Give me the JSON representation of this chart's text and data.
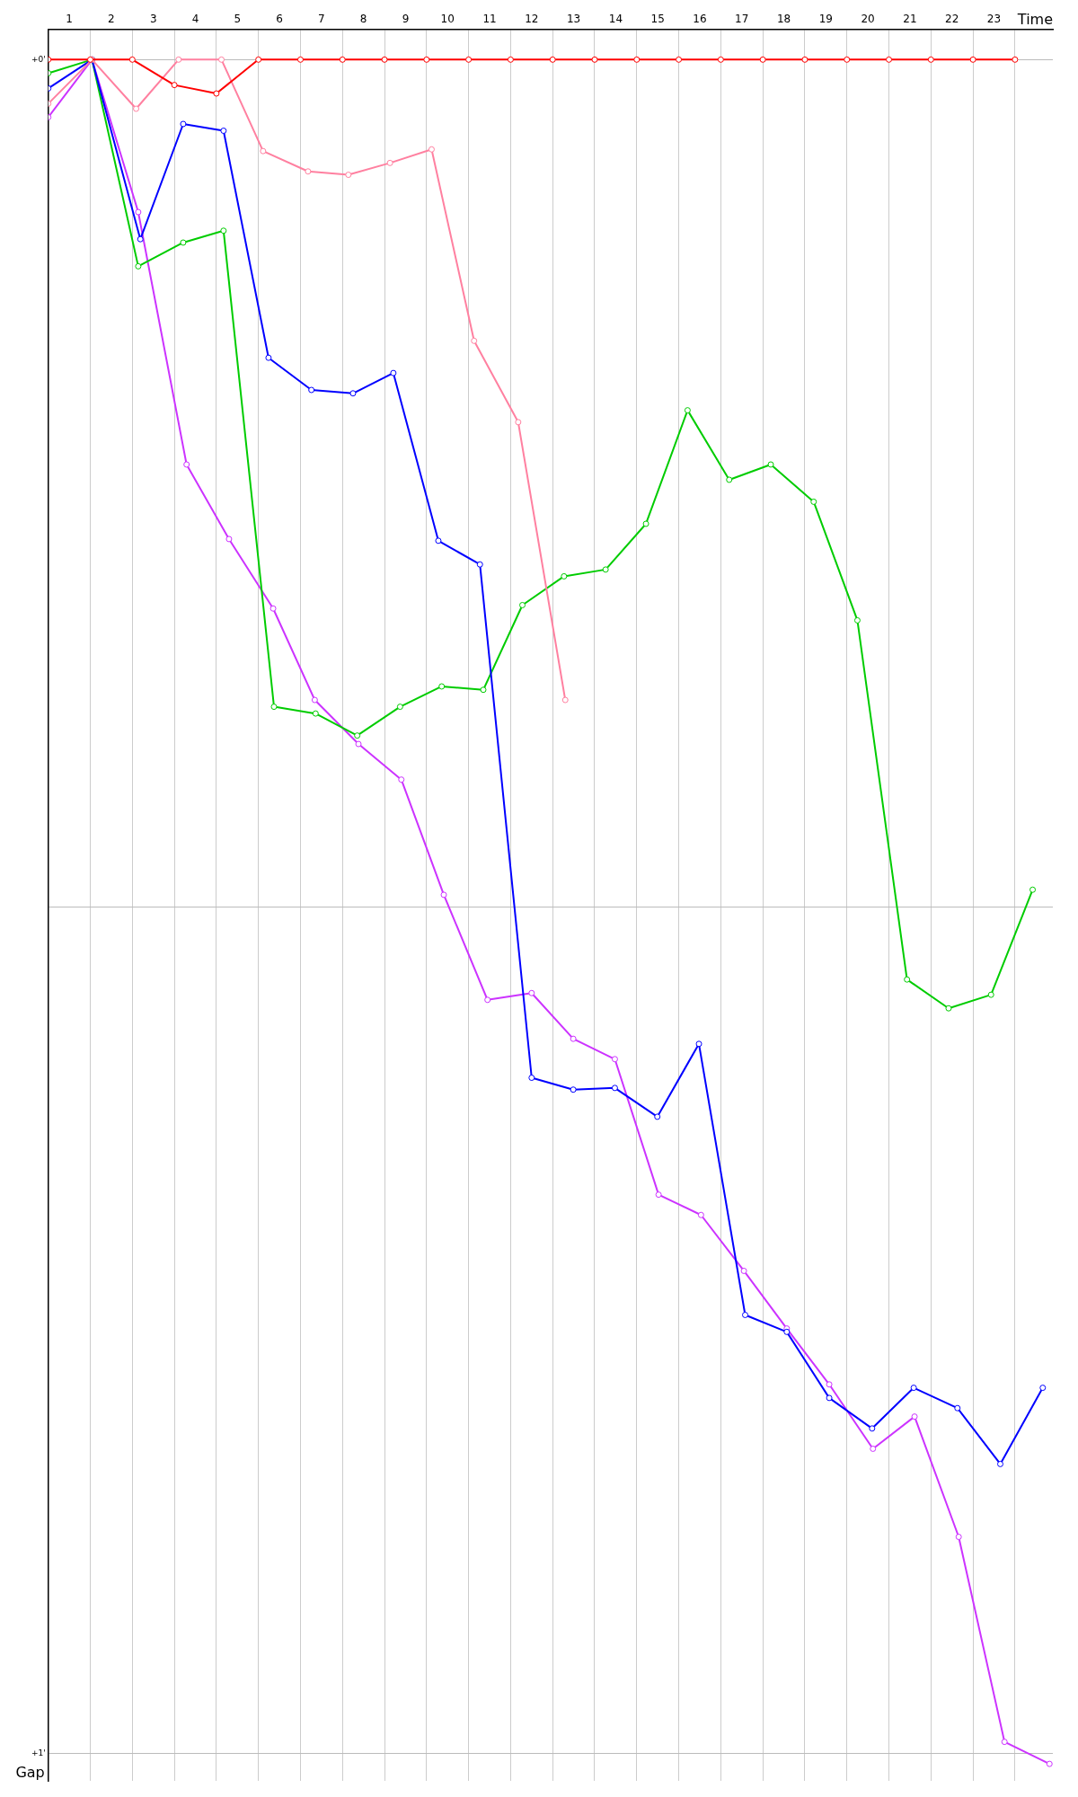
{
  "chart_data": {
    "type": "line",
    "xlabel": "Time",
    "ylabel": "Gap",
    "xlim": [
      0,
      23.9
    ],
    "ylim": [
      1.016,
      -0.018
    ],
    "xticks": [
      {
        "value": 0.5,
        "label": "1"
      },
      {
        "value": 1,
        "label": null
      },
      {
        "value": 1.5,
        "label": "2"
      },
      {
        "value": 2,
        "label": null
      },
      {
        "value": 2.5,
        "label": "3"
      },
      {
        "value": 3,
        "label": null
      },
      {
        "value": 3.5,
        "label": "4"
      },
      {
        "value": 4,
        "label": null
      },
      {
        "value": 4.5,
        "label": "5"
      },
      {
        "value": 5,
        "label": null
      },
      {
        "value": 5.5,
        "label": "6"
      },
      {
        "value": 6,
        "label": null
      },
      {
        "value": 6.5,
        "label": "7"
      },
      {
        "value": 7,
        "label": null
      },
      {
        "value": 7.5,
        "label": "8"
      },
      {
        "value": 8,
        "label": null
      },
      {
        "value": 8.5,
        "label": "9"
      },
      {
        "value": 9,
        "label": null
      },
      {
        "value": 9.5,
        "label": "10"
      },
      {
        "value": 10,
        "label": null
      },
      {
        "value": 10.5,
        "label": "11"
      },
      {
        "value": 11,
        "label": null
      },
      {
        "value": 11.5,
        "label": "12"
      },
      {
        "value": 12,
        "label": null
      },
      {
        "value": 12.5,
        "label": "13"
      },
      {
        "value": 13,
        "label": null
      },
      {
        "value": 13.5,
        "label": "14"
      },
      {
        "value": 14,
        "label": null
      },
      {
        "value": 14.5,
        "label": "15"
      },
      {
        "value": 15,
        "label": null
      },
      {
        "value": 15.5,
        "label": "16"
      },
      {
        "value": 16,
        "label": null
      },
      {
        "value": 16.5,
        "label": "17"
      },
      {
        "value": 17,
        "label": null
      },
      {
        "value": 17.5,
        "label": "18"
      },
      {
        "value": 18,
        "label": null
      },
      {
        "value": 18.5,
        "label": "19"
      },
      {
        "value": 19,
        "label": null
      },
      {
        "value": 19.5,
        "label": "20"
      },
      {
        "value": 20,
        "label": null
      },
      {
        "value": 20.5,
        "label": "21"
      },
      {
        "value": 21,
        "label": null
      },
      {
        "value": 21.5,
        "label": "22"
      },
      {
        "value": 22,
        "label": null
      },
      {
        "value": 22.5,
        "label": "23"
      },
      {
        "value": 23,
        "label": null
      }
    ],
    "yticks": [
      {
        "value": 0,
        "label": "+0'"
      },
      {
        "value": 0.5,
        "label": null
      },
      {
        "value": 1,
        "label": "+1'"
      }
    ],
    "grid": true,
    "legend": false,
    "marker": "circle",
    "line_style": "solid",
    "series": [
      {
        "color": "#ff0000",
        "x": [
          0,
          1,
          2,
          3,
          4,
          5,
          6,
          7,
          8,
          9,
          10,
          11,
          12,
          13,
          14,
          15,
          16,
          17,
          18,
          19,
          20,
          21,
          22,
          23
        ],
        "values": [
          0,
          0,
          0,
          0.015,
          0.02,
          0,
          0,
          0,
          0,
          0,
          0,
          0,
          0,
          0,
          0,
          0,
          0,
          0,
          0,
          0,
          0,
          0,
          0,
          0
        ]
      },
      {
        "color": "#ff80a0",
        "x": [
          0,
          1.04,
          2.09,
          3.1,
          4.12,
          5.11,
          6.18,
          7.14,
          8.13,
          9.12,
          10.13,
          11.18,
          12.3
        ],
        "values": [
          0.026,
          0,
          0.029,
          0,
          0,
          0.054,
          0.066,
          0.068,
          0.061,
          0.053,
          0.166,
          0.214,
          0.378
        ]
      },
      {
        "color": "#0000ff",
        "x": [
          0,
          1.04,
          2.19,
          3.21,
          4.17,
          5.24,
          6.26,
          7.25,
          8.21,
          9.28,
          10.27,
          11.5,
          12.49,
          13.48,
          14.49,
          15.48,
          16.58,
          17.57,
          18.58,
          19.6,
          20.59,
          21.63,
          22.65,
          23.66
        ],
        "values": [
          0.017,
          0,
          0.106,
          0.038,
          0.042,
          0.176,
          0.195,
          0.197,
          0.185,
          0.284,
          0.298,
          0.601,
          0.608,
          0.607,
          0.624,
          0.581,
          0.741,
          0.751,
          0.79,
          0.808,
          0.784,
          0.796,
          0.829,
          0.784
        ]
      },
      {
        "color": "#00cc00",
        "x": [
          0,
          1.04,
          2.14,
          3.21,
          4.17,
          5.37,
          6.36,
          7.35,
          8.37,
          9.36,
          10.35,
          11.28,
          12.27,
          13.26,
          14.22,
          15.21,
          16.2,
          17.19,
          18.21,
          19.25,
          20.43,
          21.42,
          22.43,
          23.42
        ],
        "values": [
          0.008,
          0,
          0.122,
          0.108,
          0.101,
          0.382,
          0.386,
          0.399,
          0.382,
          0.37,
          0.372,
          0.322,
          0.305,
          0.301,
          0.274,
          0.207,
          0.248,
          0.239,
          0.261,
          0.331,
          0.543,
          0.56,
          0.552,
          0.49
        ]
      },
      {
        "color": "#cc33ff",
        "x": [
          0,
          1.04,
          2.14,
          3.29,
          4.3,
          5.35,
          6.34,
          7.38,
          8.4,
          9.41,
          10.45,
          11.5,
          12.49,
          13.48,
          14.52,
          15.53,
          16.55,
          17.57,
          18.58,
          19.62,
          20.61,
          21.66,
          22.75,
          23.82
        ],
        "values": [
          0.034,
          0,
          0.09,
          0.239,
          0.283,
          0.324,
          0.378,
          0.404,
          0.425,
          0.493,
          0.555,
          0.551,
          0.578,
          0.59,
          0.67,
          0.682,
          0.715,
          0.749,
          0.782,
          0.82,
          0.801,
          0.872,
          0.993,
          1.006
        ]
      }
    ]
  }
}
